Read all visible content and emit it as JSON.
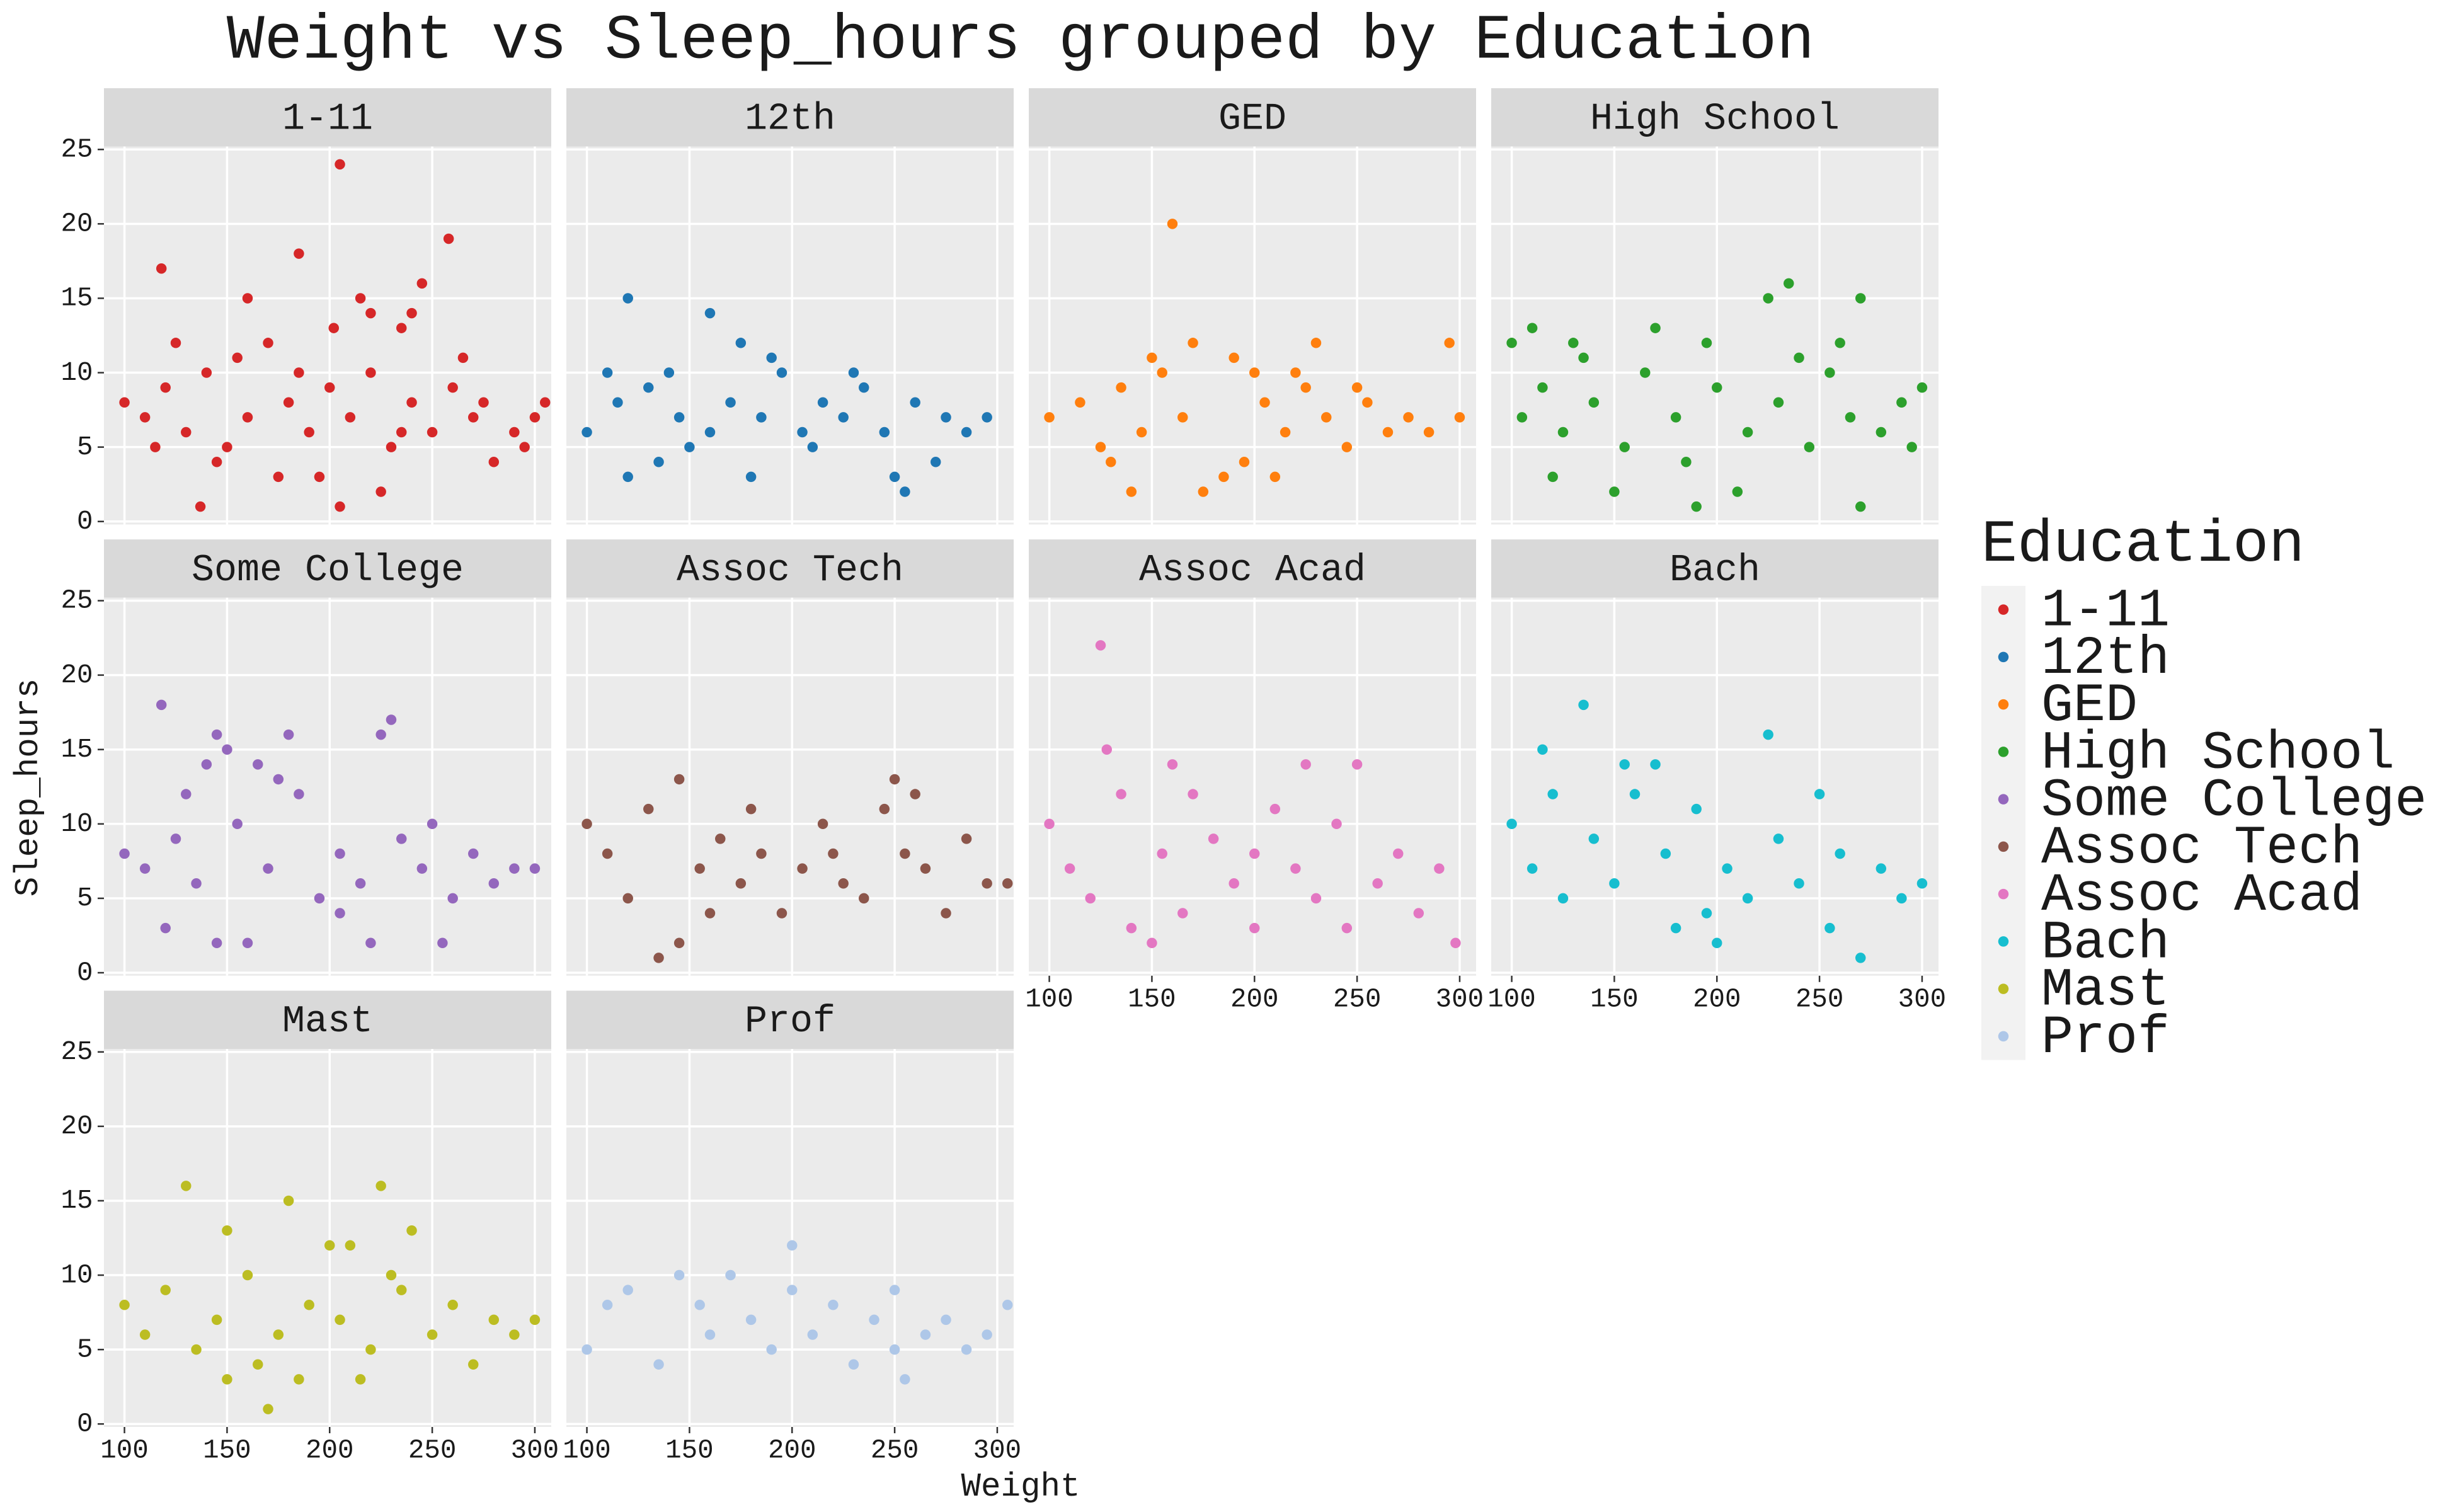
{
  "chart_data": {
    "type": "scatter",
    "title": "Weight vs Sleep_hours grouped by Education",
    "x_label": "Weight",
    "y_label": "Sleep_hours",
    "legend_title": "Education",
    "legend_position": "right",
    "grid": true,
    "xlim": [
      90,
      308
    ],
    "ylim": [
      -0.2,
      25.2
    ],
    "xticks": [
      100,
      150,
      200,
      250,
      300
    ],
    "yticks": [
      0,
      5,
      10,
      15,
      20,
      25
    ],
    "series": [
      {
        "name": "1-11",
        "color": "#d62728",
        "x": [
          205,
          185,
          258,
          118,
          160,
          215,
          245,
          240,
          220,
          235,
          202,
          137,
          205,
          225,
          195,
          100,
          110,
          120,
          130,
          140,
          150,
          160,
          170,
          180,
          190,
          200,
          210,
          220,
          230,
          240,
          250,
          260,
          270,
          280,
          290,
          300,
          125,
          145,
          175,
          265,
          295,
          305,
          115,
          155,
          185,
          235,
          275
        ],
        "y": [
          24,
          18,
          19,
          17,
          15,
          15,
          16,
          14,
          14,
          13,
          13,
          1,
          1,
          2,
          3,
          8,
          7,
          9,
          6,
          10,
          5,
          7,
          12,
          8,
          6,
          9,
          7,
          10,
          5,
          8,
          6,
          9,
          7,
          4,
          6,
          7,
          12,
          4,
          3,
          11,
          5,
          8,
          5,
          11,
          10,
          6,
          8
        ]
      },
      {
        "name": "12th",
        "color": "#1f77b4",
        "x": [
          120,
          160,
          175,
          190,
          110,
          120,
          135,
          150,
          180,
          250,
          255,
          270,
          100,
          115,
          130,
          145,
          160,
          170,
          185,
          195,
          205,
          215,
          225,
          235,
          245,
          260,
          275,
          285,
          295,
          140,
          210,
          230
        ],
        "y": [
          15,
          14,
          12,
          11,
          10,
          3,
          4,
          5,
          3,
          3,
          2,
          4,
          6,
          8,
          9,
          7,
          6,
          8,
          7,
          10,
          6,
          8,
          7,
          9,
          6,
          8,
          7,
          6,
          7,
          10,
          5,
          10
        ]
      },
      {
        "name": "GED",
        "color": "#ff7f0e",
        "x": [
          160,
          295,
          230,
          150,
          200,
          100,
          115,
          125,
          135,
          145,
          155,
          165,
          175,
          185,
          195,
          205,
          215,
          225,
          235,
          245,
          255,
          265,
          275,
          285,
          300,
          170,
          190,
          210,
          140,
          130,
          250,
          220
        ],
        "y": [
          20,
          12,
          12,
          11,
          10,
          7,
          8,
          5,
          9,
          6,
          10,
          7,
          2,
          3,
          4,
          8,
          6,
          9,
          7,
          5,
          8,
          6,
          7,
          6,
          7,
          12,
          11,
          3,
          2,
          4,
          9,
          10
        ]
      },
      {
        "name": "High School",
        "color": "#2ca02c",
        "x": [
          235,
          225,
          270,
          100,
          110,
          130,
          170,
          195,
          260,
          190,
          270,
          150,
          210,
          120,
          300,
          105,
          115,
          125,
          140,
          155,
          165,
          180,
          200,
          215,
          230,
          245,
          255,
          265,
          280,
          290,
          185,
          240,
          135,
          295
        ],
        "y": [
          16,
          15,
          15,
          12,
          13,
          12,
          13,
          12,
          12,
          1,
          1,
          2,
          2,
          3,
          9,
          7,
          9,
          6,
          8,
          5,
          10,
          7,
          9,
          6,
          8,
          5,
          10,
          7,
          6,
          8,
          4,
          11,
          11,
          5
        ]
      },
      {
        "name": "Some College",
        "color": "#9467bd",
        "x": [
          118,
          230,
          145,
          180,
          225,
          140,
          165,
          150,
          175,
          120,
          145,
          160,
          220,
          255,
          100,
          110,
          125,
          135,
          155,
          170,
          185,
          195,
          205,
          215,
          235,
          245,
          260,
          270,
          280,
          290,
          300,
          205,
          130,
          250
        ],
        "y": [
          18,
          17,
          16,
          16,
          16,
          14,
          14,
          15,
          13,
          3,
          2,
          2,
          2,
          2,
          8,
          7,
          9,
          6,
          10,
          7,
          12,
          5,
          8,
          6,
          9,
          7,
          5,
          8,
          6,
          7,
          7,
          4,
          12,
          10
        ]
      },
      {
        "name": "Assoc Tech",
        "color": "#8c564b",
        "x": [
          145,
          250,
          100,
          110,
          120,
          130,
          135,
          145,
          155,
          165,
          175,
          185,
          195,
          205,
          215,
          225,
          235,
          245,
          255,
          265,
          275,
          285,
          295,
          305,
          260,
          180,
          160,
          220
        ],
        "y": [
          13,
          13,
          10,
          8,
          5,
          11,
          1,
          2,
          7,
          9,
          6,
          8,
          4,
          7,
          10,
          6,
          5,
          11,
          8,
          7,
          4,
          9,
          6,
          6,
          12,
          11,
          4,
          8
        ]
      },
      {
        "name": "Assoc Acad",
        "color": "#e377c2",
        "x": [
          125,
          128,
          160,
          225,
          250,
          100,
          110,
          120,
          140,
          150,
          165,
          180,
          190,
          200,
          210,
          220,
          230,
          240,
          260,
          270,
          280,
          290,
          298,
          135,
          155,
          170,
          245,
          200
        ],
        "y": [
          22,
          15,
          14,
          14,
          14,
          10,
          7,
          5,
          3,
          2,
          4,
          9,
          6,
          8,
          11,
          7,
          5,
          10,
          6,
          8,
          4,
          7,
          2,
          12,
          8,
          12,
          3,
          3
        ]
      },
      {
        "name": "Bach",
        "color": "#17becf",
        "x": [
          135,
          225,
          115,
          155,
          170,
          270,
          200,
          180,
          100,
          110,
          125,
          140,
          150,
          160,
          175,
          190,
          205,
          215,
          230,
          240,
          250,
          260,
          280,
          290,
          300,
          120,
          255,
          195
        ],
        "y": [
          18,
          16,
          15,
          14,
          14,
          1,
          2,
          3,
          10,
          7,
          5,
          9,
          6,
          12,
          8,
          11,
          7,
          5,
          9,
          6,
          12,
          8,
          7,
          5,
          6,
          12,
          3,
          4
        ]
      },
      {
        "name": "Mast",
        "color": "#bcbd22",
        "x": [
          130,
          225,
          180,
          150,
          240,
          200,
          210,
          170,
          185,
          150,
          215,
          100,
          110,
          120,
          135,
          145,
          160,
          175,
          190,
          205,
          220,
          235,
          250,
          260,
          270,
          280,
          290,
          300,
          165,
          230
        ],
        "y": [
          16,
          16,
          15,
          13,
          13,
          12,
          12,
          1,
          3,
          3,
          3,
          8,
          6,
          9,
          5,
          7,
          10,
          6,
          8,
          7,
          5,
          9,
          6,
          8,
          4,
          7,
          6,
          7,
          4,
          10
        ]
      },
      {
        "name": "Prof",
        "color": "#aec7e8",
        "x": [
          200,
          100,
          110,
          120,
          135,
          145,
          160,
          170,
          180,
          190,
          200,
          210,
          220,
          230,
          240,
          250,
          255,
          265,
          275,
          285,
          295,
          305,
          155,
          250
        ],
        "y": [
          12,
          5,
          8,
          9,
          4,
          10,
          6,
          10,
          7,
          5,
          9,
          6,
          8,
          4,
          7,
          5,
          3,
          6,
          7,
          5,
          6,
          8,
          8,
          9
        ]
      }
    ]
  }
}
